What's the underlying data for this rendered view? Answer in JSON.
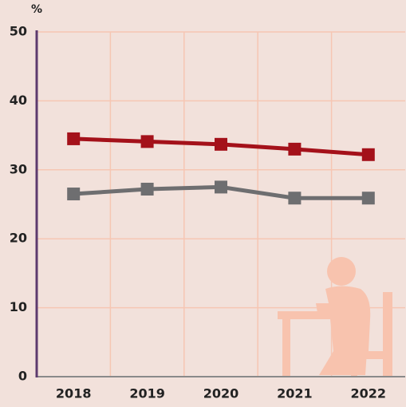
{
  "chart_data": {
    "type": "line",
    "y_label": "%",
    "categories": [
      "2018",
      "2019",
      "2020",
      "2021",
      "2022"
    ],
    "series": [
      {
        "color": "#a4111a",
        "values": [
          34.5,
          34.1,
          33.7,
          33.0,
          32.2
        ]
      },
      {
        "color": "#6e6e70",
        "values": [
          26.5,
          27.2,
          27.5,
          25.9,
          25.9
        ]
      }
    ],
    "ylim": [
      0,
      50
    ],
    "yticks": [
      0,
      10,
      20,
      30,
      40,
      50
    ],
    "grid": true
  }
}
